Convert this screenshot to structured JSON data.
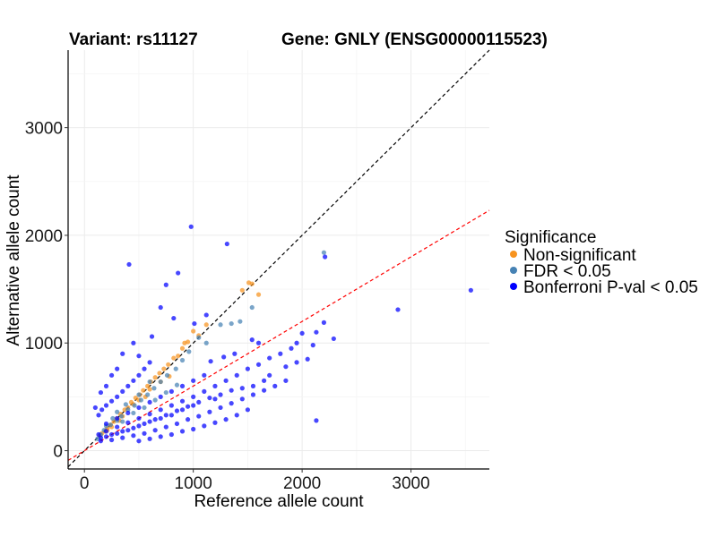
{
  "chart_data": {
    "type": "scatter",
    "title_left": "Variant: rs11127",
    "title_right": "Gene: GNLY (ENSG00000115523)",
    "xlabel": "Reference allele count",
    "ylabel": "Alternative allele count",
    "xlim": [
      -150,
      3720
    ],
    "ylim": [
      -170,
      3720
    ],
    "xticks": [
      0,
      1000,
      2000,
      3000
    ],
    "yticks": [
      0,
      1000,
      2000,
      3000
    ],
    "grid": true,
    "legend": {
      "title": "Significance",
      "position": "right",
      "entries": [
        {
          "label": "Non-significant",
          "color": "#F7931E"
        },
        {
          "label": "FDR < 0.05",
          "color": "#4682B4"
        },
        {
          "label": "Bonferroni P-val < 0.05",
          "color": "#0000FF"
        }
      ]
    },
    "reference_lines": [
      {
        "name": "identity",
        "slope": 1.0,
        "intercept": 0,
        "color": "#000000",
        "style": "dashed"
      },
      {
        "name": "fitted",
        "slope": 0.6,
        "intercept": 0,
        "color": "#FF0000",
        "style": "dashed"
      }
    ],
    "series": [
      {
        "name": "Non-significant",
        "color": "#F7931E",
        "points": [
          [
            1510,
            1560
          ],
          [
            1540,
            1550
          ],
          [
            1600,
            1450
          ],
          [
            1450,
            1490
          ],
          [
            920,
            1000
          ],
          [
            900,
            950
          ],
          [
            860,
            880
          ],
          [
            820,
            860
          ],
          [
            770,
            800
          ],
          [
            730,
            760
          ],
          [
            690,
            720
          ],
          [
            650,
            680
          ],
          [
            610,
            640
          ],
          [
            580,
            600
          ],
          [
            540,
            560
          ],
          [
            510,
            520
          ],
          [
            470,
            490
          ],
          [
            430,
            450
          ],
          [
            400,
            400
          ],
          [
            370,
            380
          ],
          [
            330,
            340
          ],
          [
            300,
            300
          ],
          [
            270,
            270
          ],
          [
            240,
            240
          ],
          [
            210,
            210
          ],
          [
            190,
            180
          ],
          [
            160,
            160
          ],
          [
            140,
            140
          ],
          [
            1000,
            1110
          ],
          [
            1050,
            1070
          ],
          [
            780,
            690
          ],
          [
            700,
            640
          ],
          [
            560,
            500
          ],
          [
            450,
            430
          ],
          [
            350,
            320
          ],
          [
            320,
            280
          ],
          [
            250,
            220
          ],
          [
            210,
            190
          ],
          [
            1120,
            1170
          ],
          [
            950,
            1010
          ],
          [
            600,
            570
          ],
          [
            500,
            470
          ]
        ]
      },
      {
        "name": "FDR < 0.05",
        "color": "#4682B4",
        "points": [
          [
            2200,
            1840
          ],
          [
            1540,
            1330
          ],
          [
            1430,
            1200
          ],
          [
            1350,
            1180
          ],
          [
            1250,
            1170
          ],
          [
            1050,
            1050
          ],
          [
            960,
            920
          ],
          [
            900,
            840
          ],
          [
            840,
            760
          ],
          [
            760,
            700
          ],
          [
            700,
            640
          ],
          [
            640,
            580
          ],
          [
            580,
            520
          ],
          [
            520,
            470
          ],
          [
            460,
            420
          ],
          [
            400,
            380
          ],
          [
            340,
            320
          ],
          [
            300,
            280
          ],
          [
            240,
            240
          ],
          [
            180,
            190
          ],
          [
            150,
            150
          ],
          [
            120,
            110
          ],
          [
            1120,
            1000
          ],
          [
            600,
            640
          ],
          [
            500,
            520
          ],
          [
            380,
            430
          ],
          [
            300,
            360
          ],
          [
            260,
            300
          ],
          [
            200,
            230
          ],
          [
            350,
            270
          ],
          [
            450,
            350
          ],
          [
            550,
            400
          ],
          [
            650,
            470
          ],
          [
            750,
            540
          ],
          [
            850,
            610
          ]
        ]
      },
      {
        "name": "Bonferroni P-val < 0.05",
        "color": "#0000FF",
        "points": [
          [
            980,
            2080
          ],
          [
            1310,
            1920
          ],
          [
            410,
            1730
          ],
          [
            2210,
            1800
          ],
          [
            3550,
            1490
          ],
          [
            2880,
            1310
          ],
          [
            860,
            1650
          ],
          [
            750,
            1540
          ],
          [
            1120,
            1260
          ],
          [
            700,
            1330
          ],
          [
            820,
            1230
          ],
          [
            1010,
            1180
          ],
          [
            620,
            1060
          ],
          [
            2000,
            1090
          ],
          [
            2130,
            1100
          ],
          [
            2290,
            1040
          ],
          [
            2200,
            1190
          ],
          [
            1540,
            1030
          ],
          [
            1600,
            1000
          ],
          [
            1900,
            950
          ],
          [
            1800,
            900
          ],
          [
            1700,
            860
          ],
          [
            1600,
            800
          ],
          [
            1500,
            760
          ],
          [
            1400,
            700
          ],
          [
            1300,
            650
          ],
          [
            1200,
            600
          ],
          [
            1100,
            550
          ],
          [
            1000,
            500
          ],
          [
            900,
            460
          ],
          [
            800,
            420
          ],
          [
            700,
            380
          ],
          [
            600,
            340
          ],
          [
            500,
            300
          ],
          [
            400,
            260
          ],
          [
            300,
            220
          ],
          [
            200,
            180
          ],
          [
            130,
            150
          ],
          [
            1850,
            650
          ],
          [
            1750,
            600
          ],
          [
            1650,
            560
          ],
          [
            1550,
            520
          ],
          [
            1450,
            480
          ],
          [
            1350,
            440
          ],
          [
            1250,
            400
          ],
          [
            1150,
            360
          ],
          [
            1050,
            320
          ],
          [
            950,
            290
          ],
          [
            850,
            250
          ],
          [
            750,
            220
          ],
          [
            650,
            190
          ],
          [
            550,
            160
          ],
          [
            450,
            140
          ],
          [
            350,
            120
          ],
          [
            250,
            100
          ],
          [
            150,
            90
          ],
          [
            1200,
            480
          ],
          [
            1000,
            420
          ],
          [
            900,
            380
          ],
          [
            800,
            330
          ],
          [
            700,
            300
          ],
          [
            600,
            270
          ],
          [
            500,
            230
          ],
          [
            400,
            190
          ],
          [
            300,
            160
          ],
          [
            200,
            130
          ],
          [
            1100,
            700
          ],
          [
            1000,
            650
          ],
          [
            900,
            600
          ],
          [
            800,
            550
          ],
          [
            700,
            500
          ],
          [
            600,
            450
          ],
          [
            500,
            400
          ],
          [
            400,
            350
          ],
          [
            300,
            300
          ],
          [
            200,
            250
          ],
          [
            100,
            400
          ],
          [
            130,
            330
          ],
          [
            160,
            380
          ],
          [
            200,
            420
          ],
          [
            250,
            460
          ],
          [
            300,
            500
          ],
          [
            350,
            550
          ],
          [
            400,
            600
          ],
          [
            450,
            650
          ],
          [
            500,
            700
          ],
          [
            550,
            760
          ],
          [
            600,
            820
          ],
          [
            350,
            900
          ],
          [
            450,
            1000
          ],
          [
            500,
            880
          ],
          [
            300,
            760
          ],
          [
            250,
            700
          ],
          [
            200,
            600
          ],
          [
            150,
            540
          ],
          [
            2130,
            280
          ],
          [
            1500,
            380
          ],
          [
            1400,
            330
          ],
          [
            1300,
            290
          ],
          [
            1200,
            260
          ],
          [
            1100,
            230
          ],
          [
            1000,
            200
          ],
          [
            900,
            180
          ],
          [
            800,
            150
          ],
          [
            700,
            130
          ],
          [
            600,
            110
          ],
          [
            500,
            90
          ],
          [
            1700,
            700
          ],
          [
            1850,
            780
          ],
          [
            1950,
            820
          ],
          [
            2050,
            850
          ],
          [
            1650,
            650
          ],
          [
            1550,
            600
          ],
          [
            1450,
            580
          ],
          [
            1350,
            560
          ],
          [
            1250,
            520
          ],
          [
            1150,
            490
          ],
          [
            1050,
            450
          ],
          [
            950,
            410
          ],
          [
            850,
            370
          ],
          [
            750,
            330
          ],
          [
            650,
            290
          ],
          [
            550,
            250
          ],
          [
            450,
            210
          ],
          [
            350,
            180
          ],
          [
            250,
            150
          ],
          [
            150,
            120
          ],
          [
            1160,
            830
          ],
          [
            1280,
            870
          ],
          [
            1380,
            900
          ],
          [
            2100,
            980
          ],
          [
            1950,
            1000
          ]
        ]
      }
    ]
  }
}
